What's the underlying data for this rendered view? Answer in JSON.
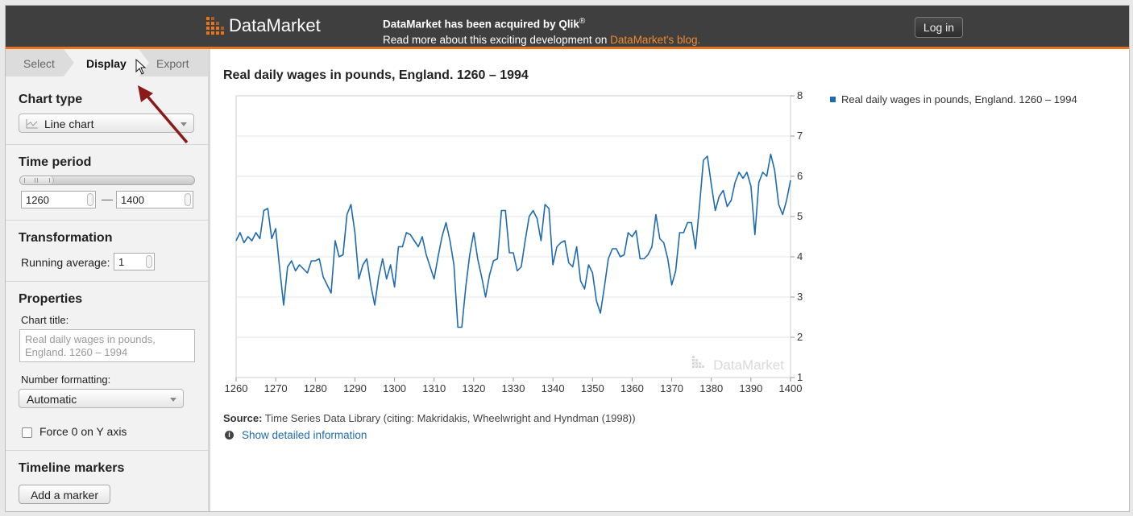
{
  "header": {
    "logo_text": "DataMarket",
    "announce_line1": "DataMarket has been acquired by Qlik",
    "announce_reg": "®",
    "announce_line2": "Read more about this exciting development on ",
    "announce_link": "DataMarket's blog.",
    "login_label": "Log in",
    "colors": {
      "bar": "#3f3f3f",
      "accent": "#e8741c"
    }
  },
  "tabs": [
    {
      "label": "Select",
      "active": false
    },
    {
      "label": "Display",
      "active": true
    },
    {
      "label": "Export",
      "active": false
    }
  ],
  "sidebar": {
    "chart_type": {
      "title": "Chart type",
      "value": "Line chart",
      "icon": "line-chart-icon"
    },
    "time_period": {
      "title": "Time period",
      "from": "1260",
      "separator": "—",
      "to": "1400",
      "slider_fraction": 0.19
    },
    "transformation": {
      "title": "Transformation",
      "running_label": "Running average:",
      "running_value": "1"
    },
    "properties": {
      "title": "Properties",
      "chart_title_label": "Chart title:",
      "chart_title_placeholder": "Real daily wages in pounds, England. 1260 – 1994",
      "number_formatting_label": "Number formatting:",
      "number_formatting_value": "Automatic",
      "force_zero_label": "Force 0 on Y axis",
      "force_zero_checked": false
    },
    "timeline": {
      "title": "Timeline markers",
      "add_label": "Add a marker"
    }
  },
  "main": {
    "chart_title": "Real daily wages in pounds, England. 1260 – 1994",
    "legend_label": "Real daily wages in pounds, England. 1260 – 1994",
    "watermark": "DataMarket",
    "source_label": "Source:",
    "source_text": " Time Series Data Library (citing: Makridakis, Wheelwright and Hyndman (1998))",
    "details_link": "Show detailed information",
    "details_icon": "info-icon"
  },
  "chart_data": {
    "type": "line",
    "title": "Real daily wages in pounds, England. 1260 – 1994",
    "series_color": "#1f6bb0",
    "xlim": [
      1260,
      1400
    ],
    "ylim": [
      1,
      8
    ],
    "x_ticks": [
      1260,
      1270,
      1280,
      1290,
      1300,
      1310,
      1320,
      1330,
      1340,
      1350,
      1360,
      1370,
      1380,
      1390,
      1400
    ],
    "y_ticks": [
      1,
      2,
      3,
      4,
      5,
      6,
      7,
      8
    ],
    "y_axis_side": "right",
    "grid": true,
    "legend": "top-right",
    "series": [
      {
        "name": "Real daily wages in pounds, England. 1260 – 1994",
        "x": [
          1260,
          1261,
          1262,
          1263,
          1264,
          1265,
          1266,
          1267,
          1268,
          1269,
          1270,
          1271,
          1272,
          1273,
          1274,
          1275,
          1276,
          1277,
          1278,
          1279,
          1280,
          1281,
          1282,
          1283,
          1284,
          1285,
          1286,
          1287,
          1288,
          1289,
          1290,
          1291,
          1292,
          1293,
          1294,
          1295,
          1296,
          1297,
          1298,
          1299,
          1300,
          1301,
          1302,
          1303,
          1304,
          1305,
          1306,
          1307,
          1308,
          1309,
          1310,
          1311,
          1312,
          1313,
          1314,
          1315,
          1316,
          1317,
          1318,
          1319,
          1320,
          1321,
          1322,
          1323,
          1324,
          1325,
          1326,
          1327,
          1328,
          1329,
          1330,
          1331,
          1332,
          1333,
          1334,
          1335,
          1336,
          1337,
          1338,
          1339,
          1340,
          1341,
          1342,
          1343,
          1344,
          1345,
          1346,
          1347,
          1348,
          1349,
          1350,
          1351,
          1352,
          1353,
          1354,
          1355,
          1356,
          1357,
          1358,
          1359,
          1360,
          1361,
          1362,
          1363,
          1364,
          1365,
          1366,
          1367,
          1368,
          1369,
          1370,
          1371,
          1372,
          1373,
          1374,
          1375,
          1376,
          1377,
          1378,
          1379,
          1380,
          1381,
          1382,
          1383,
          1384,
          1385,
          1386,
          1387,
          1388,
          1389,
          1390,
          1391,
          1392,
          1393,
          1394,
          1395,
          1396,
          1397,
          1398,
          1399,
          1400
        ],
        "values": [
          4.4,
          4.6,
          4.35,
          4.5,
          4.4,
          4.6,
          4.45,
          5.15,
          5.2,
          4.45,
          4.7,
          3.7,
          2.8,
          3.75,
          3.9,
          3.65,
          3.8,
          3.7,
          3.6,
          3.9,
          3.9,
          3.95,
          3.5,
          3.3,
          3.1,
          4.4,
          4.0,
          4.05,
          5.05,
          5.3,
          4.6,
          3.45,
          3.8,
          3.95,
          3.3,
          2.8,
          3.5,
          3.95,
          3.45,
          3.8,
          3.25,
          4.25,
          4.25,
          4.6,
          4.55,
          4.4,
          4.25,
          4.5,
          4.05,
          3.75,
          3.45,
          4.0,
          4.5,
          4.85,
          4.4,
          3.8,
          2.25,
          2.25,
          3.25,
          4.05,
          4.6,
          3.95,
          3.5,
          3.0,
          3.55,
          3.9,
          3.95,
          5.15,
          5.15,
          4.1,
          4.1,
          3.65,
          3.75,
          4.4,
          5.0,
          5.15,
          4.95,
          4.4,
          5.3,
          5.2,
          3.8,
          4.25,
          4.35,
          4.4,
          3.85,
          3.75,
          4.25,
          3.4,
          3.2,
          3.8,
          3.6,
          2.9,
          2.6,
          3.25,
          3.95,
          4.2,
          4.2,
          4.0,
          4.05,
          4.6,
          4.5,
          4.65,
          3.95,
          3.95,
          4.05,
          4.25,
          5.05,
          4.45,
          4.35,
          3.95,
          3.3,
          3.65,
          4.6,
          4.6,
          4.85,
          4.85,
          4.2,
          5.25,
          6.4,
          6.5,
          5.8,
          5.15,
          5.5,
          5.65,
          5.25,
          5.4,
          5.85,
          6.1,
          5.95,
          6.1,
          5.75,
          4.55,
          5.85,
          6.1,
          6.0,
          6.55,
          6.15,
          5.3,
          5.05,
          5.4,
          5.9
        ]
      }
    ]
  }
}
